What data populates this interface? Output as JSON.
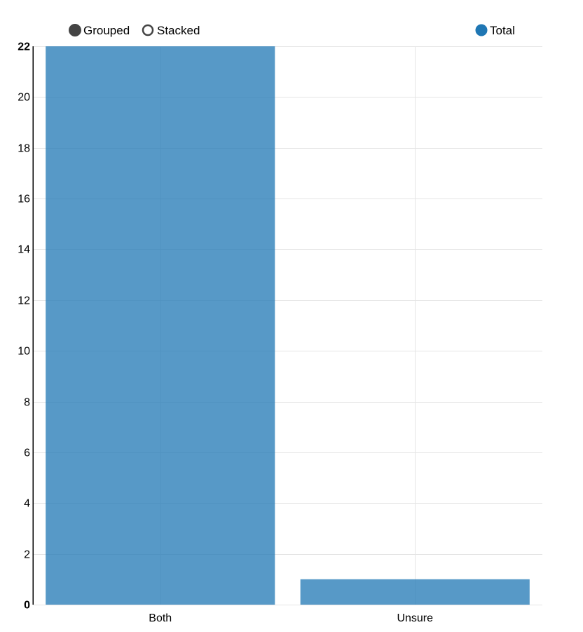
{
  "controls": {
    "grouped_label": "Grouped",
    "stacked_label": "Stacked",
    "selected": "grouped"
  },
  "legend": {
    "entries": [
      {
        "label": "Total",
        "color": "#1f77b4"
      }
    ]
  },
  "colors": {
    "bar": "#1f77b4",
    "control_fill": "#444444",
    "grid": "#e5e5e5"
  },
  "chart_data": {
    "type": "bar",
    "categories": [
      "Both",
      "Unsure"
    ],
    "series": [
      {
        "name": "Total",
        "values": [
          22,
          1
        ]
      }
    ],
    "title": "",
    "xlabel": "",
    "ylabel": "",
    "ylim": [
      0,
      22
    ],
    "yticks": [
      0,
      2,
      4,
      6,
      8,
      10,
      12,
      14,
      16,
      18,
      20,
      22
    ],
    "grid": true,
    "legend_position": "top-right"
  }
}
